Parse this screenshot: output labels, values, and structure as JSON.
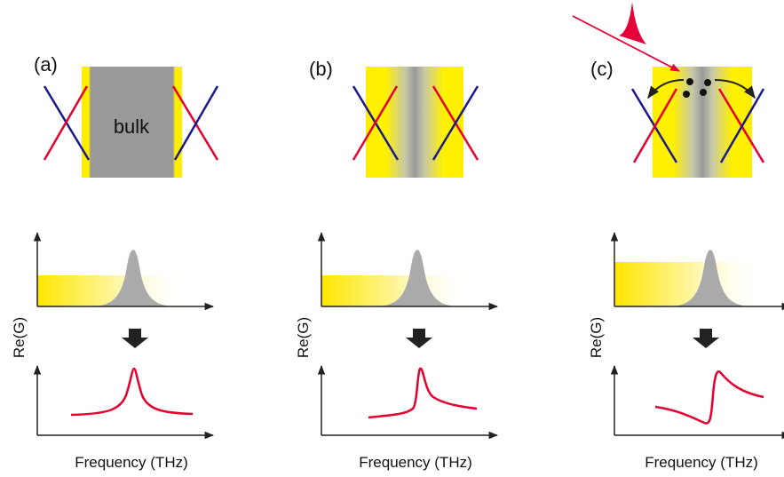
{
  "panels": [
    {
      "label": "(a)",
      "bulk_label": "bulk",
      "y_label": "Re(G)",
      "x_label": "Frequency (THz)"
    },
    {
      "label": "(b)",
      "y_label": "Re(G)",
      "x_label": "Frequency (THz)"
    },
    {
      "label": "(c)",
      "y_label": "Re(G)",
      "x_label": "Frequency (THz)"
    }
  ]
}
